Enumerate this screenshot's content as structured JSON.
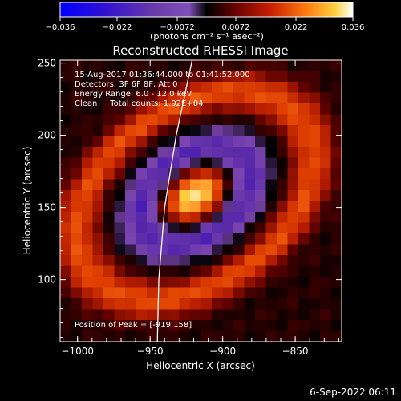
{
  "colorbar": {
    "ticks": [
      "-0.036",
      "-0.022",
      "-0.0072",
      "0.0072",
      "0.022",
      "0.036"
    ],
    "units": "(photons cm⁻² s⁻¹ asec⁻²)",
    "range": [
      -0.036,
      0.036
    ]
  },
  "chart_data": {
    "type": "heatmap",
    "title": "Reconstructed RHESSI Image",
    "xlabel": "Heliocentric X (arcsec)",
    "ylabel": "Heliocentric Y (arcsec)",
    "xlim": [
      -1012,
      -818
    ],
    "ylim": [
      57,
      252
    ],
    "x_ticks": [
      -1000,
      -950,
      -900,
      -850
    ],
    "y_ticks": [
      100,
      150,
      200,
      250
    ],
    "x_tick_labels": [
      "−1000",
      "−950",
      "−900",
      "−850"
    ],
    "y_tick_labels": [
      "100",
      "150",
      "200",
      "250"
    ],
    "peak": {
      "x": -919,
      "y": 158,
      "value": 0.036
    },
    "annotations": [
      "15-Aug-2017 01:36:44.000 to 01:41:52.000",
      "Detectors: 3F 6F 8F, Att 0",
      "Energy Range: 6.0 - 12.0 keV",
      "Clean     Total counts: 1.92E+04"
    ],
    "peak_label": "Position of Peak = [-919,158]",
    "limb_curve": [
      [
        -921,
        252
      ],
      [
        -932,
        200
      ],
      [
        -940,
        150
      ],
      [
        -944,
        100
      ],
      [
        -945,
        57
      ]
    ],
    "colormap": [
      "#0000ff",
      "#2200cc",
      "#5a2aa8",
      "#7b45b0",
      "#000000",
      "#5a0000",
      "#b01a00",
      "#e04000",
      "#ff8020",
      "#ffd040",
      "#ffffff"
    ]
  },
  "footer": {
    "date": "6-Sep-2022 06:11"
  }
}
